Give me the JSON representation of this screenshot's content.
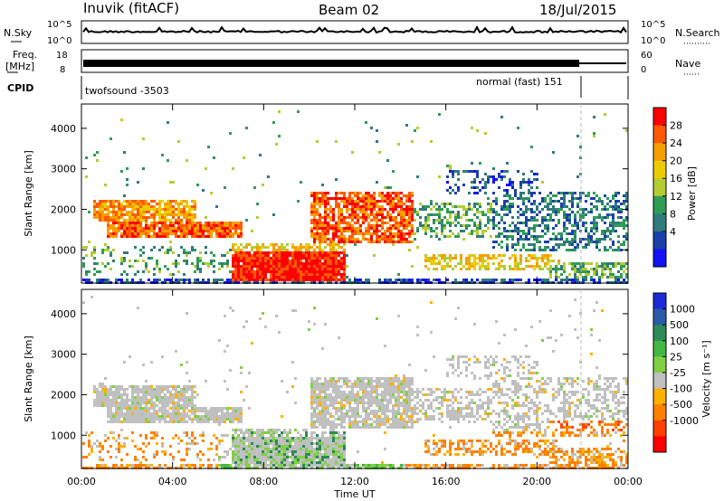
{
  "header": {
    "station": "Inuvik (fitACF)",
    "beam": "Beam 02",
    "date": "18/Jul/2015"
  },
  "panels": {
    "nsky_label": "N.Sky",
    "nsky_ticks": [
      "10^5",
      "10^0"
    ],
    "nsearch_label": "N.Search",
    "freq_label_1": "Freq.",
    "freq_label_2": "[MHz]",
    "freq_ticks": [
      "18",
      "8"
    ],
    "nave_label": "Nave",
    "nave_ticks": [
      "60",
      "0"
    ],
    "cpid_label": "CPID",
    "cpid_left": "twofsound -3503",
    "cpid_right": "normal (fast) 151"
  },
  "chart_data": [
    {
      "type": "heatmap",
      "name": "power",
      "ylabel": "Slant Range [km]",
      "xlabel": "Time UT",
      "xlim": [
        "00:00",
        "24:00"
      ],
      "ylim": [
        180,
        4600
      ],
      "x_ticks": [
        "00:00",
        "04:00",
        "08:00",
        "12:00",
        "16:00",
        "20:00",
        "00:00"
      ],
      "y_ticks": [
        1000,
        2000,
        3000,
        4000
      ],
      "colorbar": {
        "label": "Power [dB]",
        "ticks": [
          "28",
          "24",
          "20",
          "16",
          "12",
          "8",
          "4"
        ],
        "colors": [
          "#ff0000",
          "#ff5a00",
          "#f79e00",
          "#eccc00",
          "#b4cc32",
          "#2f9d55",
          "#307b7b",
          "#1b41a8",
          "#1212f5"
        ]
      }
    },
    {
      "type": "heatmap",
      "name": "velocity",
      "ylabel": "Slant Range [km]",
      "xlabel": "Time UT",
      "xlim": [
        "00:00",
        "24:00"
      ],
      "ylim": [
        180,
        4600
      ],
      "x_ticks": [
        "00:00",
        "04:00",
        "08:00",
        "12:00",
        "16:00",
        "20:00",
        "00:00"
      ],
      "y_ticks": [
        1000,
        2000,
        3000,
        4000
      ],
      "colorbar": {
        "label": "Velocity [m s⁻¹]",
        "ticks": [
          "1000",
          "500",
          "100",
          "25",
          "-25",
          "-100",
          "-500",
          "-1000"
        ],
        "colors": [
          "#1a2ad8",
          "#2a5aa8",
          "#2f8a5a",
          "#44b844",
          "#80d044",
          "#c0c0c0",
          "#ffb000",
          "#ff8000",
          "#ff4000",
          "#ff0000"
        ]
      }
    }
  ],
  "xaxis": {
    "label": "Time UT"
  }
}
